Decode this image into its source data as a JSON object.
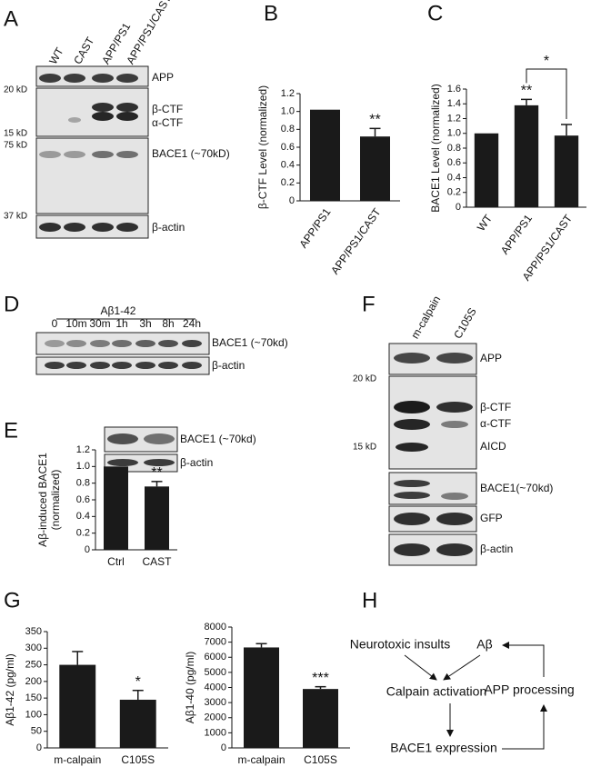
{
  "figure": {
    "panel_letters": [
      "A",
      "B",
      "C",
      "D",
      "E",
      "F",
      "G",
      "H"
    ]
  },
  "blots": {
    "A": {
      "lanes": [
        "WT",
        "CAST",
        "APP/PS1",
        "APP/PS1/CAST"
      ],
      "bands": [
        "APP",
        "β-CTF",
        "α-CTF",
        "BACE1 (~70kD)",
        "β-actin"
      ],
      "markers": [
        "20 kD",
        "15 kD",
        "75 kD",
        "37 kD"
      ]
    },
    "D": {
      "treatment": "Aβ1-42",
      "lanes": [
        "0",
        "10m",
        "30m",
        "1h",
        "3h",
        "8h",
        "24h"
      ],
      "bands": [
        "BACE1 (~70kd)",
        "β-actin"
      ]
    },
    "E": {
      "bands": [
        "BACE1 (~70kd)",
        "β-actin"
      ]
    },
    "F": {
      "lanes": [
        "m-calpain",
        "C105S"
      ],
      "bands": [
        "APP",
        "β-CTF",
        "α-CTF",
        "AICD",
        "BACE1(~70kd)",
        "GFP",
        "β-actin"
      ],
      "markers": [
        "20 kD",
        "15 kD"
      ]
    }
  },
  "chart_data": [
    {
      "type": "bar",
      "ylabel": "β-CTF Level (normalized)",
      "categories": [
        "APP/PS1",
        "APP/PS1/CAST"
      ],
      "values": [
        1.02,
        0.72
      ],
      "errors": [
        0,
        0.09
      ],
      "color": "#1a1a1a",
      "ylim": [
        0,
        1.2
      ],
      "yticks": [
        0,
        0.2,
        0.4,
        0.6,
        0.8,
        {
          "value": 1,
          "label": "1.0"
        },
        1.2
      ],
      "annotations": [
        {
          "text": "**",
          "category": "APP/PS1/CAST"
        }
      ]
    },
    {
      "type": "bar",
      "ylabel": "BACE1 Level (normalized)",
      "categories": [
        "WT",
        "APP/PS1",
        "APP/PS1/CAST"
      ],
      "values": [
        1.0,
        1.38,
        0.97
      ],
      "errors": [
        0,
        0.08,
        0.15
      ],
      "color": "#1a1a1a",
      "ylim": [
        0,
        1.6
      ],
      "yticks": [
        0,
        0.2,
        0.4,
        0.6,
        0.8,
        {
          "value": 1,
          "label": "1.0"
        },
        1.2,
        1.4,
        1.6
      ],
      "annotations": [
        {
          "text": "**",
          "category": "APP/PS1"
        },
        {
          "text": "*",
          "from": "APP/PS1",
          "to": "APP/PS1/CAST"
        }
      ]
    },
    {
      "type": "bar",
      "ylabel": [
        "Aβ-induced BACE1",
        "(normalized)"
      ],
      "categories": [
        "Ctrl",
        "CAST"
      ],
      "values": [
        1.0,
        0.76
      ],
      "errors": [
        0,
        0.06
      ],
      "color": "#1a1a1a",
      "ylim": [
        0,
        1.2
      ],
      "yticks": [
        0,
        0.2,
        0.4,
        0.6,
        0.8,
        {
          "value": 1,
          "label": "1.0"
        },
        1.2
      ],
      "annotations": [
        {
          "text": "**",
          "category": "CAST"
        }
      ]
    },
    {
      "type": "bar",
      "ylabel": "Aβ1-42 (pg/ml)",
      "categories": [
        "m-calpain",
        "C105S"
      ],
      "values": [
        250,
        145
      ],
      "errors": [
        40,
        28
      ],
      "color": "#1a1a1a",
      "ylim": [
        0,
        350
      ],
      "yticks": [
        0,
        50,
        100,
        150,
        200,
        250,
        300,
        350
      ],
      "annotations": [
        {
          "text": "*",
          "category": "C105S"
        }
      ]
    },
    {
      "type": "bar",
      "ylabel": "Aβ1-40 (pg/ml)",
      "categories": [
        "m-calpain",
        "C105S"
      ],
      "values": [
        6650,
        3900
      ],
      "errors": [
        250,
        150
      ],
      "color": "#1a1a1a",
      "ylim": [
        0,
        8000
      ],
      "yticks": [
        0,
        1000,
        2000,
        3000,
        4000,
        5000,
        6000,
        7000,
        8000
      ],
      "annotations": [
        {
          "text": "***",
          "category": "C105S"
        }
      ]
    }
  ],
  "diagram": {
    "nodes": [
      {
        "label": "Neurotoxic insults"
      },
      {
        "label": "Aβ"
      },
      {
        "label": "Calpain activation"
      },
      {
        "label": "APP processing"
      },
      {
        "label": "BACE1 expression"
      }
    ]
  }
}
